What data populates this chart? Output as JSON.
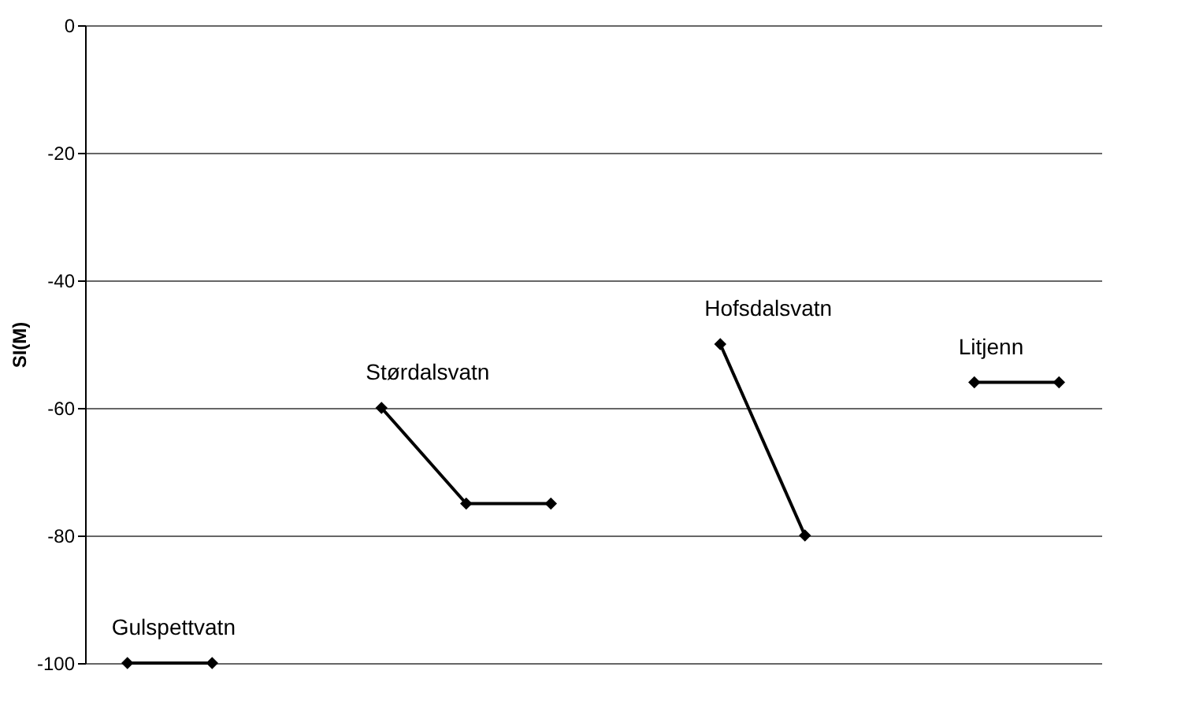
{
  "chart_data": {
    "type": "line",
    "ylabel": "SI(M)",
    "categories": [
      null,
      null,
      null,
      null,
      null,
      null,
      null,
      null,
      null,
      null,
      null,
      null
    ],
    "series": [
      {
        "name": "Gulspettvatn",
        "color": "#000000",
        "values": [
          -100,
          -100,
          null,
          null,
          null,
          null,
          null,
          null,
          null,
          null,
          null,
          null
        ]
      },
      {
        "name": "Størdalsvatn",
        "color": "#000000",
        "values": [
          null,
          null,
          null,
          -60,
          -75,
          -75,
          null,
          null,
          null,
          null,
          null,
          null
        ]
      },
      {
        "name": "Hofsdalsvatn",
        "color": "#000000",
        "values": [
          null,
          null,
          null,
          null,
          null,
          null,
          null,
          -50,
          -80,
          null,
          null,
          null
        ]
      },
      {
        "name": "Litjenn",
        "color": "#000000",
        "values": [
          null,
          null,
          null,
          null,
          null,
          null,
          null,
          null,
          null,
          null,
          -56,
          -56
        ]
      }
    ],
    "ylim": [
      -100,
      0
    ],
    "yticks": [
      -100,
      -80,
      -60,
      -40,
      -20,
      0
    ],
    "grid": "y",
    "marker": "diamond",
    "line_style": "solid",
    "tick_labels": "y"
  }
}
